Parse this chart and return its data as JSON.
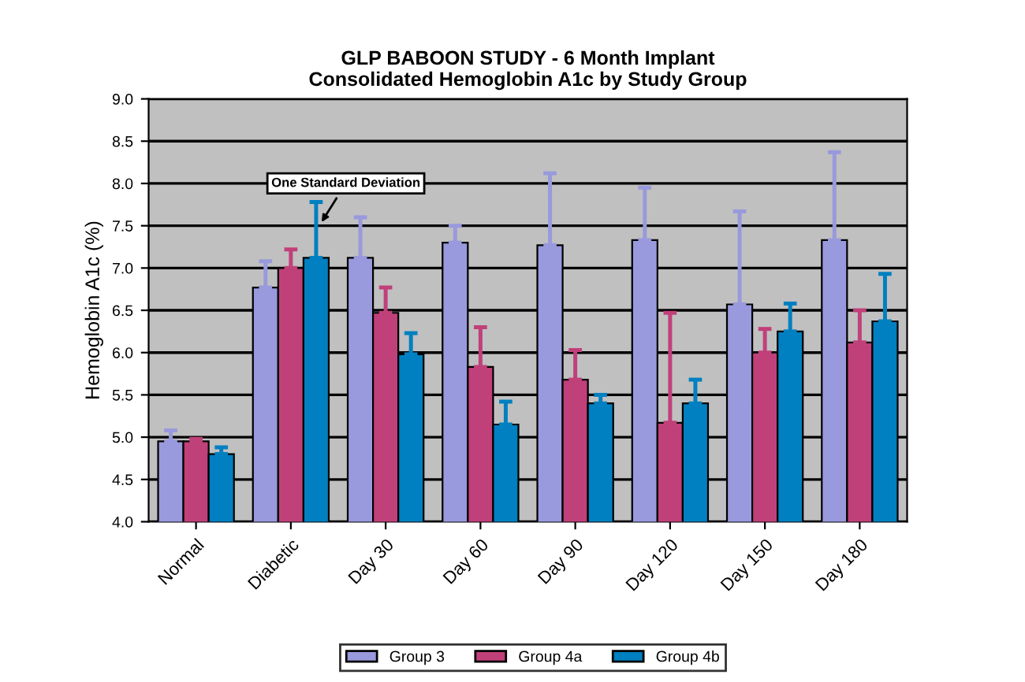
{
  "chart_data": {
    "type": "bar",
    "title": "GLP BABOON STUDY - 6 Month Implant\nConsolidated Hemoglobin A1c by Study Group",
    "ylabel": "Hemoglobin A1c (%)",
    "categories": [
      "Normal",
      "Diabetic",
      "Day 30",
      "Day 60",
      "Day 90",
      "Day 120",
      "Day 150",
      "Day 180"
    ],
    "series": [
      {
        "name": "Group 3",
        "color": "#9999dd",
        "values": [
          4.95,
          6.77,
          7.12,
          7.3,
          7.27,
          7.33,
          6.57,
          7.33
        ],
        "errors": [
          [
            4.95,
            5.08
          ],
          [
            6.77,
            7.08
          ],
          [
            7.12,
            7.6
          ],
          [
            7.3,
            7.5
          ],
          [
            7.27,
            8.12
          ],
          [
            7.33,
            7.95
          ],
          [
            6.57,
            7.67
          ],
          [
            7.33,
            8.37
          ]
        ]
      },
      {
        "name": "Group 4a",
        "color": "#c0407a",
        "values": [
          4.95,
          7.0,
          6.47,
          5.83,
          5.68,
          5.17,
          6.0,
          6.12
        ],
        "errors": [
          [
            4.95,
            4.98
          ],
          [
            7.0,
            7.22
          ],
          [
            6.47,
            6.77
          ],
          [
            5.83,
            6.3
          ],
          [
            5.68,
            6.03
          ],
          [
            5.17,
            6.47
          ],
          [
            6.0,
            6.28
          ],
          [
            6.12,
            6.5
          ]
        ]
      },
      {
        "name": "Group 4b",
        "color": "#0080c0",
        "values": [
          4.8,
          7.12,
          5.98,
          5.15,
          5.4,
          5.4,
          6.25,
          6.37
        ],
        "errors": [
          [
            4.8,
            4.88
          ],
          [
            7.12,
            7.78
          ],
          [
            5.98,
            6.23
          ],
          [
            5.15,
            5.42
          ],
          [
            5.4,
            5.5
          ],
          [
            5.4,
            5.68
          ],
          [
            6.25,
            6.58
          ],
          [
            6.37,
            6.93
          ]
        ]
      }
    ],
    "ylim": [
      4.0,
      9.0
    ],
    "yticks": [
      {
        "value": 4.0,
        "label": "4.0"
      },
      {
        "value": 4.5,
        "label": "4.5"
      },
      {
        "value": 5.0,
        "label": "5.0"
      },
      {
        "value": 5.5,
        "label": "5.5"
      },
      {
        "value": 6.0,
        "label": "6.0"
      },
      {
        "value": 6.5,
        "label": "6.5"
      },
      {
        "value": 7.0,
        "label": "7.0"
      },
      {
        "value": 7.5,
        "label": "7.5"
      },
      {
        "value": 8.0,
        "label": "8.0"
      },
      {
        "value": 8.5,
        "label": "8.5"
      },
      {
        "value": 9.0,
        "label": "9.0"
      }
    ],
    "grid": "y",
    "legend": "bottom",
    "annotations": [
      "One Standard Deviation"
    ]
  }
}
